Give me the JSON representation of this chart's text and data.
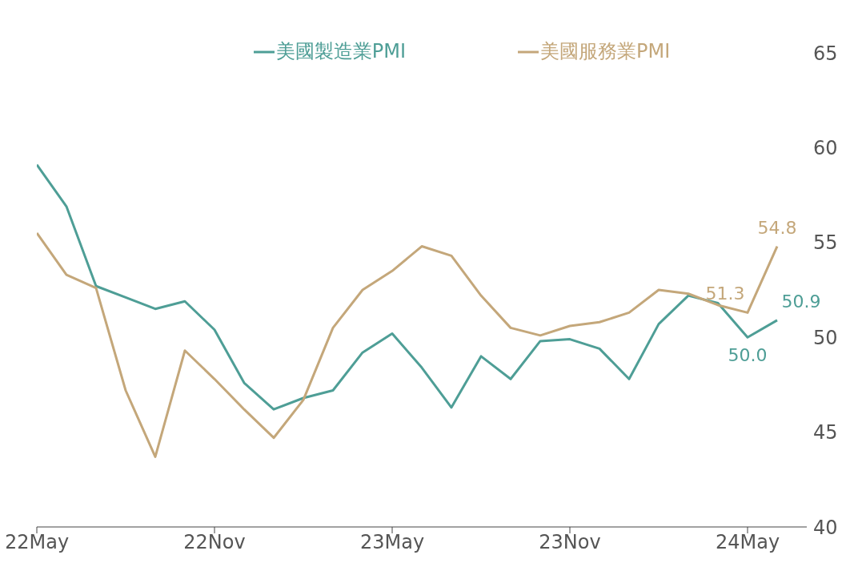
{
  "chart_data": {
    "type": "line",
    "x": [
      "2022-05",
      "2022-06",
      "2022-07",
      "2022-08",
      "2022-09",
      "2022-10",
      "2022-11",
      "2022-12",
      "2023-01",
      "2023-02",
      "2023-03",
      "2023-04",
      "2023-05",
      "2023-06",
      "2023-07",
      "2023-08",
      "2023-09",
      "2023-10",
      "2023-11",
      "2023-12",
      "2024-01",
      "2024-02",
      "2024-03",
      "2024-04",
      "2024-05",
      "2024-06"
    ],
    "series": [
      {
        "name": "美國製造業PMI",
        "color": "#4e9e96",
        "values": [
          59.1,
          56.9,
          52.7,
          52.1,
          51.5,
          51.9,
          50.4,
          47.6,
          46.2,
          46.8,
          47.2,
          49.2,
          50.2,
          48.4,
          46.3,
          49.0,
          47.8,
          49.8,
          49.9,
          49.4,
          47.8,
          50.7,
          52.2,
          51.8,
          50.0,
          50.9
        ],
        "value_labels": [
          null,
          null,
          null,
          null,
          null,
          null,
          null,
          null,
          null,
          null,
          null,
          null,
          null,
          null,
          null,
          null,
          null,
          null,
          null,
          null,
          null,
          null,
          null,
          null,
          "50.0",
          "50.9"
        ]
      },
      {
        "name": "美國服務業PMI",
        "color": "#c4a77a",
        "values": [
          55.5,
          53.3,
          52.6,
          47.2,
          43.7,
          49.3,
          47.8,
          46.2,
          44.7,
          46.7,
          50.5,
          52.5,
          53.5,
          54.8,
          54.3,
          52.2,
          50.5,
          50.1,
          50.6,
          50.8,
          51.3,
          52.5,
          52.3,
          51.7,
          51.3,
          54.8
        ],
        "value_labels": [
          null,
          null,
          null,
          null,
          null,
          null,
          null,
          null,
          null,
          null,
          null,
          null,
          null,
          null,
          null,
          null,
          null,
          null,
          null,
          null,
          null,
          null,
          null,
          null,
          "51.3",
          "54.8"
        ]
      }
    ],
    "xlim": [
      "2022-05",
      "2024-07"
    ],
    "xticks": [
      {
        "value": "2022-05",
        "label": "22May"
      },
      {
        "value": "2022-11",
        "label": "22Nov"
      },
      {
        "value": "2023-05",
        "label": "23May"
      },
      {
        "value": "2023-11",
        "label": "23Nov"
      },
      {
        "value": "2024-05",
        "label": "24May"
      }
    ],
    "ylim": [
      40,
      65
    ],
    "yticks": [
      40,
      45,
      50,
      55,
      60,
      65
    ],
    "grid": false,
    "legend": "top"
  }
}
